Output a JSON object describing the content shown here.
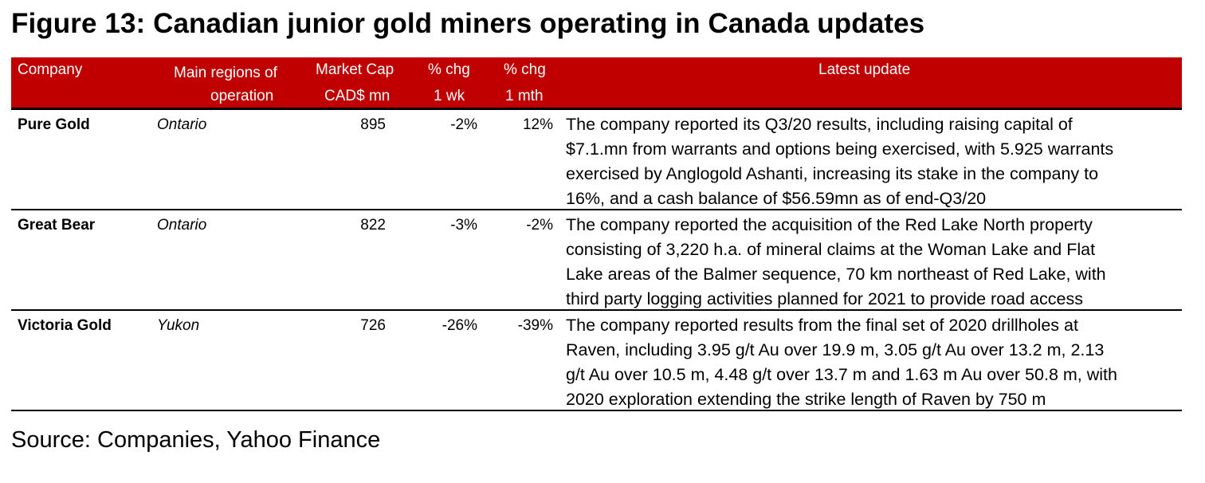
{
  "title": "Figure 13: Canadian junior gold miners operating in Canada updates",
  "header": {
    "company": "Company",
    "region_1": "Main regions of",
    "region_2": "operation",
    "mcap_1": "Market Cap",
    "mcap_2": "CAD$ mn",
    "wk_1": "% chg",
    "wk_2": "1 wk",
    "mth_1": "% chg",
    "mth_2": "1 mth",
    "update": "Latest update"
  },
  "rows": [
    {
      "company": "Pure Gold",
      "region": "Ontario",
      "market_cap": "895",
      "chg_1wk": "-2%",
      "chg_1mth": "12%",
      "update": [
        "The company reported its Q3/20 results, including raising capital of",
        "$7.1.mn from warrants and options being exercised, with 5.925 warrants",
        "exercised by Anglogold Ashanti, increasing its stake in the company to",
        "16%, and a cash balance of $56.59mn as of end-Q3/20"
      ]
    },
    {
      "company": "Great Bear",
      "region": "Ontario",
      "market_cap": "822",
      "chg_1wk": "-3%",
      "chg_1mth": "-2%",
      "update": [
        "The company reported the acquisition of the Red Lake North property",
        "consisting of 3,220 h.a. of mineral claims at the Woman Lake and Flat",
        "Lake areas of the Balmer sequence, 70 km northeast of Red Lake, with",
        "third party logging activities planned for 2021 to provide road access"
      ]
    },
    {
      "company": "Victoria Gold",
      "region": "Yukon",
      "market_cap": "726",
      "chg_1wk": "-26%",
      "chg_1mth": "-39%",
      "update": [
        "The company reported results from the final set of 2020 drillholes at",
        "Raven, including 3.95 g/t Au over 19.9 m,  3.05 g/t Au over 13.2 m, 2.13",
        "g/t Au over 10.5 m, 4.48 g/t over 13.7 m and 1.63 m Au over 50.8 m, with",
        "2020 exploration extending the strike length of Raven by 750 m"
      ]
    }
  ],
  "source": "Source: Companies, Yahoo Finance",
  "colors": {
    "header_bg": "#C00000"
  }
}
